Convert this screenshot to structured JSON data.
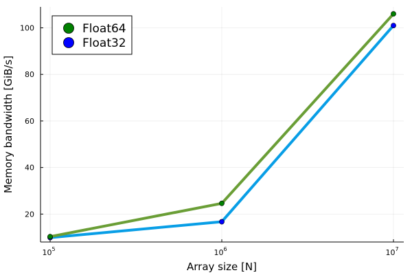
{
  "chart_data": {
    "type": "line",
    "xscale": "log10",
    "x": [
      100000,
      1000000,
      10000000
    ],
    "xticks": [
      {
        "value": 100000,
        "base": "10",
        "exp": "5"
      },
      {
        "value": 1000000,
        "base": "10",
        "exp": "6"
      },
      {
        "value": 10000000,
        "base": "10",
        "exp": "7"
      }
    ],
    "yticks": [
      20,
      40,
      60,
      80,
      100
    ],
    "ylim": [
      8,
      109
    ],
    "xlabel": "Array size [N]",
    "ylabel": "Memory bandwidth [GiB/s]",
    "grid": true,
    "legend_position": "top-left",
    "series": [
      {
        "name": "Float64",
        "values": [
          10.3,
          24.6,
          106.0
        ],
        "line_color": "#6a9e36",
        "marker_color": "#008000"
      },
      {
        "name": "Float32",
        "values": [
          9.9,
          16.7,
          101.0
        ],
        "line_color": "#089ee6",
        "marker_color": "#0000ff"
      }
    ]
  }
}
